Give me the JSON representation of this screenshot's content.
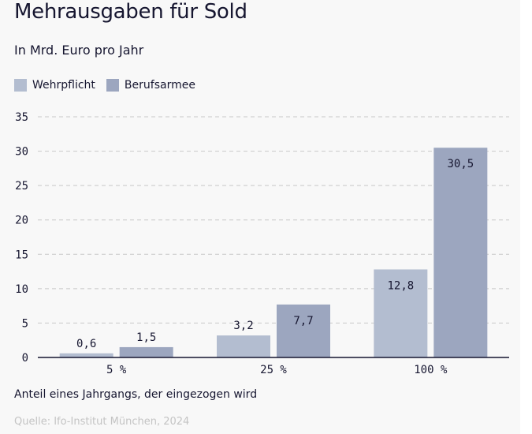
{
  "chart_data": {
    "type": "bar",
    "title": "Mehrausgaben für Sold",
    "subtitle": "In Mrd. Euro pro Jahr",
    "xlabel": "Anteil eines Jahrgangs, der eingezogen wird",
    "ylabel": "",
    "categories": [
      "5 %",
      "25 %",
      "100 %"
    ],
    "series": [
      {
        "name": "Wehrpflicht",
        "color": "#b3bdd0",
        "values": [
          0.6,
          3.2,
          12.8
        ],
        "labels": [
          "0,6",
          "3,2",
          "12,8"
        ]
      },
      {
        "name": "Berufsarmee",
        "color": "#9ca6bf",
        "values": [
          1.5,
          7.7,
          30.5
        ],
        "labels": [
          "1,5",
          "7,7",
          "30,5"
        ]
      }
    ],
    "ylim": [
      0,
      35
    ],
    "yticks": [
      0,
      5,
      10,
      15,
      20,
      25,
      30,
      35
    ],
    "grid": true,
    "legend_position": "top-left",
    "source": "Quelle: Ifo-Institut München, 2024"
  }
}
